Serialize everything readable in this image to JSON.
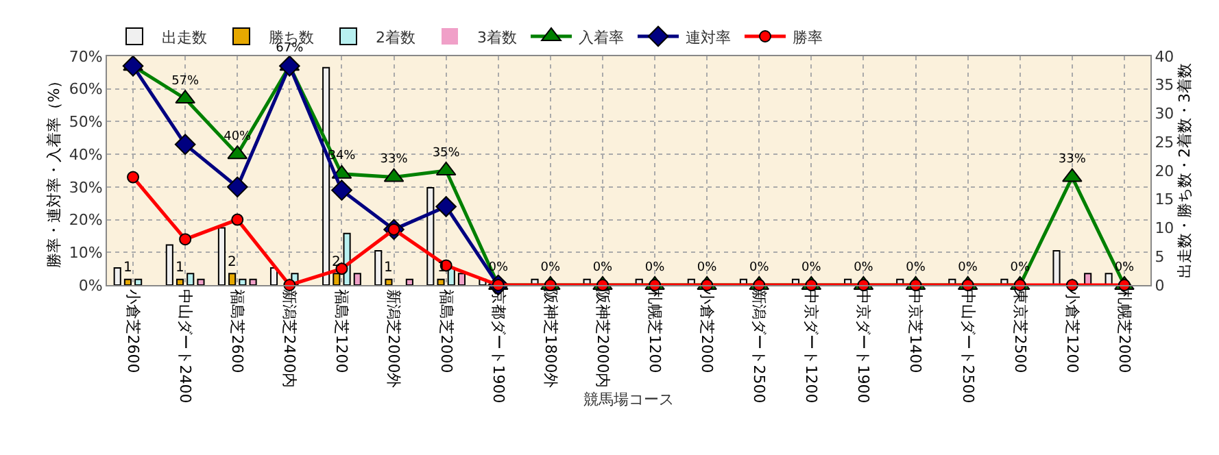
{
  "chart_data": {
    "type": "bar",
    "xlabel": "競馬場コース",
    "ylabel": "勝率・連対率・入着率（%）",
    "y2label": "出走数・勝ち数・2着数・3着数",
    "categories": [
      "小倉芝2600",
      "中山ダート2400",
      "福島芝2600",
      "新潟芝2400内",
      "福島芝1200",
      "新潟芝2000外",
      "福島芝2000",
      "京都ダート1900",
      "阪神芝1800外",
      "阪神芝2000内",
      "札幌芝1200",
      "小倉芝2000",
      "新潟ダート2500",
      "中京ダート1200",
      "中京ダート1900",
      "中京芝1400",
      "中山ダート2500",
      "東京芝2500",
      "小倉芝1200",
      "札幌芝2000"
    ],
    "series": [
      {
        "name": "出走数",
        "axis": "y2",
        "color": "#f0f0f0",
        "values": [
          3,
          7,
          10,
          3,
          38,
          6,
          17,
          1,
          1,
          1,
          1,
          1,
          1,
          1,
          1,
          1,
          1,
          1,
          6,
          2
        ]
      },
      {
        "name": "勝ち数",
        "axis": "y2",
        "color": "#e6a800",
        "values": [
          1,
          1,
          2,
          0,
          2,
          1,
          1,
          0,
          0,
          0,
          0,
          0,
          0,
          0,
          0,
          0,
          0,
          0,
          0,
          0
        ],
        "value_labels": [
          "1",
          "1",
          "2",
          null,
          "2",
          "1",
          "1",
          null,
          null,
          null,
          null,
          null,
          null,
          null,
          null,
          null,
          null,
          null,
          null,
          null
        ]
      },
      {
        "name": "2着数",
        "axis": "y2",
        "color": "#b8f0f0",
        "values": [
          1,
          2,
          1,
          2,
          9,
          0,
          3,
          0,
          0,
          0,
          0,
          0,
          0,
          0,
          0,
          0,
          0,
          0,
          0,
          0
        ]
      },
      {
        "name": "3着数",
        "axis": "y2",
        "color": "#f0a0c8",
        "values": [
          0,
          1,
          1,
          0,
          2,
          1,
          2,
          0,
          0,
          0,
          0,
          0,
          0,
          0,
          0,
          0,
          0,
          0,
          2,
          0
        ]
      },
      {
        "name": "入着率",
        "type": "line",
        "axis": "y",
        "marker": "triangle",
        "color": "#008000",
        "values": [
          67,
          57,
          40,
          67,
          34,
          33,
          35,
          0,
          0,
          0,
          0,
          0,
          0,
          0,
          0,
          0,
          0,
          0,
          33,
          0
        ],
        "value_labels": [
          null,
          "57%",
          "40%",
          "67%",
          "34%",
          "33%",
          "35%",
          "0%",
          "0%",
          "0%",
          "0%",
          "0%",
          "0%",
          "0%",
          "0%",
          "0%",
          "0%",
          "0%",
          "33%",
          "0%"
        ]
      },
      {
        "name": "連対率",
        "type": "line",
        "axis": "y",
        "marker": "diamond",
        "color": "#000080",
        "values": [
          67,
          43,
          30,
          67,
          29,
          17,
          24,
          0,
          null,
          null,
          null,
          null,
          null,
          null,
          null,
          null,
          null,
          null,
          null,
          null
        ]
      },
      {
        "name": "勝率",
        "type": "line",
        "axis": "y",
        "marker": "circle",
        "color": "#ff0000",
        "values": [
          33,
          14,
          20,
          0,
          5,
          17,
          6,
          0,
          0,
          0,
          0,
          0,
          0,
          0,
          0,
          0,
          0,
          0,
          0,
          0
        ]
      }
    ],
    "ylim": [
      0,
      70
    ],
    "yticks": [
      {
        "value": 0,
        "label": "0%"
      },
      {
        "value": 10,
        "label": "10%"
      },
      {
        "value": 20,
        "label": "20%"
      },
      {
        "value": 30,
        "label": "30%"
      },
      {
        "value": 40,
        "label": "40%"
      },
      {
        "value": 50,
        "label": "50%"
      },
      {
        "value": 60,
        "label": "60%"
      },
      {
        "value": 70,
        "label": "70%"
      }
    ],
    "y2lim": [
      0,
      40
    ],
    "y2ticks": [
      0,
      5,
      10,
      15,
      20,
      25,
      30,
      35,
      40
    ],
    "grid": true,
    "legend": "top left",
    "line_style": "solid"
  }
}
